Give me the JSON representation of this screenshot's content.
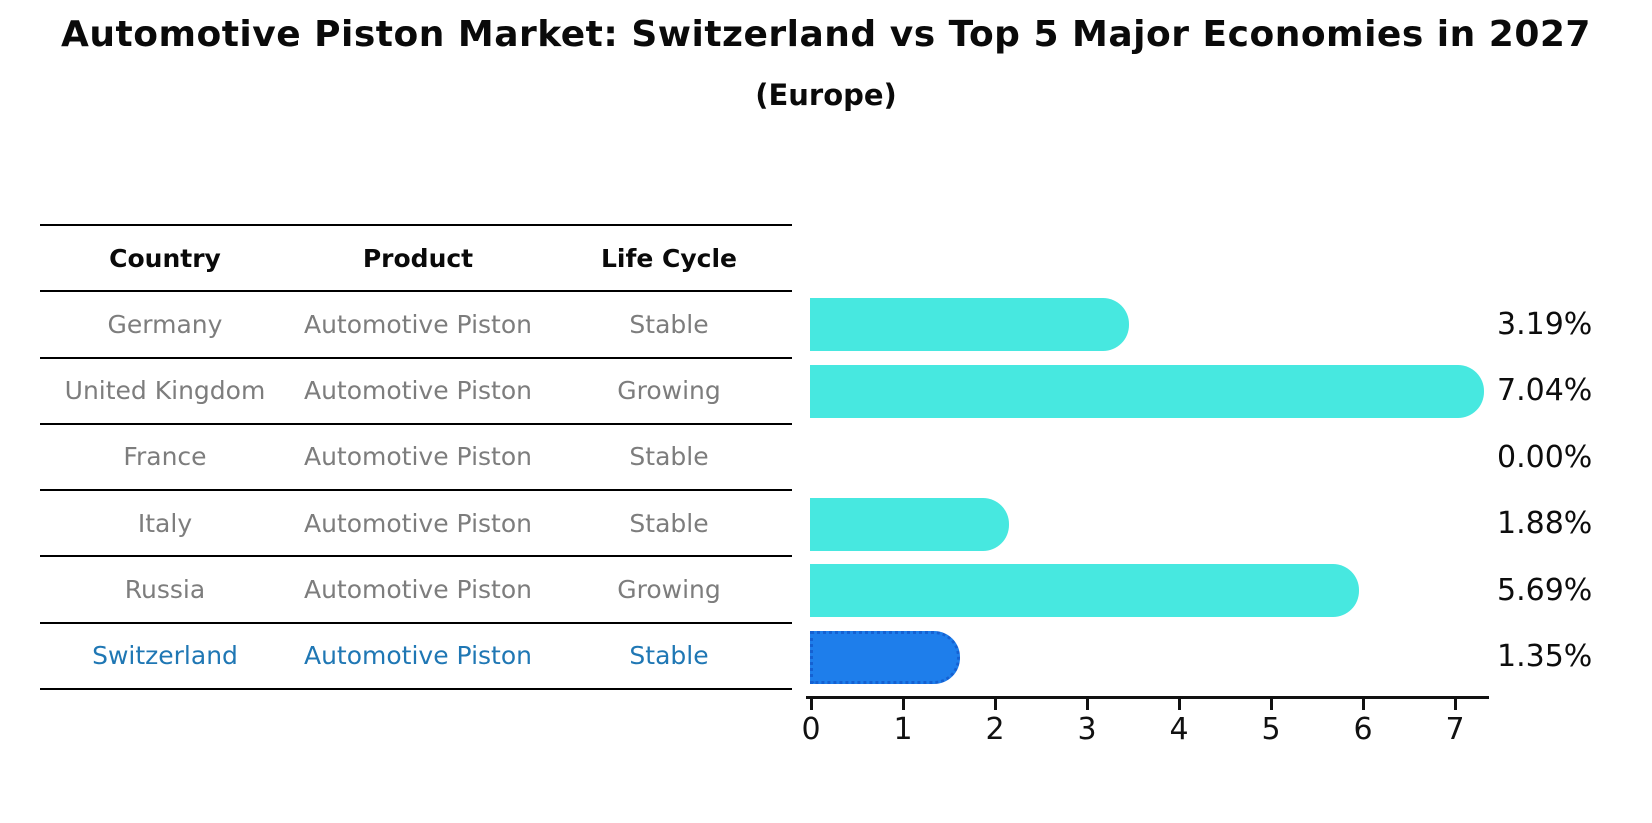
{
  "title": "Automotive Piston Market: Switzerland vs Top 5 Major Economies in 2027",
  "subtitle": "(Europe)",
  "table": {
    "headers": [
      "Country",
      "Product",
      "Life Cycle"
    ],
    "rows": [
      {
        "country": "Germany",
        "product": "Automotive Piston",
        "life_cycle": "Stable",
        "highlighted": false
      },
      {
        "country": "United Kingdom",
        "product": "Automotive Piston",
        "life_cycle": "Growing",
        "highlighted": false
      },
      {
        "country": "France",
        "product": "Automotive Piston",
        "life_cycle": "Stable",
        "highlighted": false
      },
      {
        "country": "Italy",
        "product": "Automotive Piston",
        "life_cycle": "Stable",
        "highlighted": false
      },
      {
        "country": "Russia",
        "product": "Automotive Piston",
        "life_cycle": "Growing",
        "highlighted": false
      },
      {
        "country": "Switzerland",
        "product": "Automotive Piston",
        "life_cycle": "Stable",
        "highlighted": true
      }
    ]
  },
  "chart_data": {
    "type": "bar",
    "orientation": "horizontal",
    "title": "Automotive Piston Market: Switzerland vs Top 5 Major Economies in 2027",
    "subtitle": "(Europe)",
    "categories": [
      "Germany",
      "United Kingdom",
      "France",
      "Italy",
      "Russia",
      "Switzerland"
    ],
    "values": [
      3.19,
      7.04,
      0.0,
      1.88,
      5.69,
      1.35
    ],
    "value_labels": [
      "3.19%",
      "7.04%",
      "0.00%",
      "1.88%",
      "5.69%",
      "1.35%"
    ],
    "unit": "%",
    "x_ticks": [
      "0",
      "1",
      "2",
      "3",
      "4",
      "5",
      "6",
      "7"
    ],
    "xlim": [
      0,
      7.4
    ],
    "grid": false,
    "legend": false,
    "bar_color": "#47e8e0",
    "highlight_index": 5,
    "highlight_color": "#1e7eeb",
    "highlight_edge_color": "#1561d2",
    "highlight_text_color": "#1f77b4",
    "row_text_color": "#7d7d7d"
  }
}
